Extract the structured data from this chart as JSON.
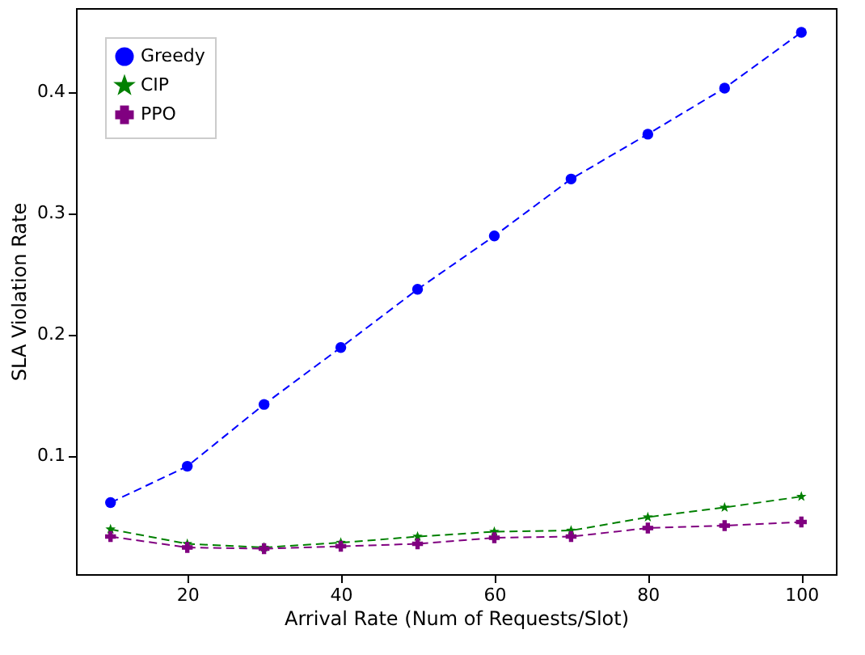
{
  "chart_data": {
    "type": "line",
    "xlabel": "Arrival Rate (Num of Requests/Slot)",
    "ylabel": "SLA Violation Rate",
    "x": [
      10,
      20,
      30,
      40,
      50,
      60,
      70,
      80,
      90,
      100
    ],
    "series": [
      {
        "name": "Greedy",
        "color": "#0000ff",
        "marker": "circle",
        "values": [
          0.061,
          0.091,
          0.142,
          0.189,
          0.237,
          0.281,
          0.328,
          0.365,
          0.403,
          0.449
        ]
      },
      {
        "name": "CIP",
        "color": "#008000",
        "marker": "star",
        "values": [
          0.039,
          0.027,
          0.024,
          0.028,
          0.033,
          0.037,
          0.038,
          0.049,
          0.057,
          0.066
        ]
      },
      {
        "name": "PPO",
        "color": "#800080",
        "marker": "cross",
        "values": [
          0.033,
          0.024,
          0.023,
          0.025,
          0.027,
          0.032,
          0.033,
          0.04,
          0.042,
          0.045
        ]
      }
    ],
    "xlim": [
      5.5,
      104.5
    ],
    "ylim": [
      0.002,
      0.469
    ],
    "xticks": [
      20,
      40,
      60,
      80,
      100
    ],
    "yticks": [
      0.1,
      0.2,
      0.3,
      0.4
    ],
    "line_style": "dashed",
    "grid": false,
    "legend": "top left"
  }
}
